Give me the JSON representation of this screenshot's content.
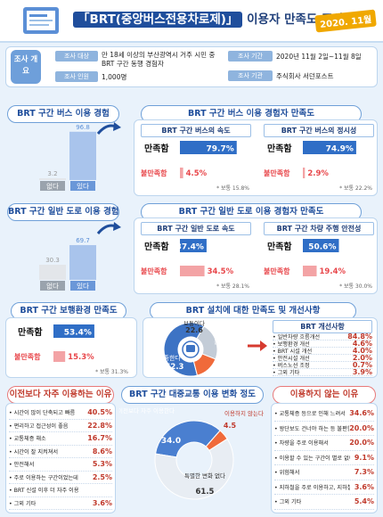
{
  "header": {
    "title_brt": "「BRT(중앙버스전용차로제)」",
    "title_rest": " 이용자 만족도 조사",
    "year": "2020. 11월"
  },
  "overview": {
    "label": "조사 개요",
    "target_label": "조사 대상",
    "target_value": "만 18세 이상의 부산광역시 거주 시민 중 BRT 구간 동행 경험자",
    "count_label": "조사 인원",
    "count_value": "1,000명",
    "period_label": "조사 기간",
    "period_value": "2020년 11월 2일~11월 8일",
    "org_label": "조사 기관",
    "org_value": "주식회사 서던포스트"
  },
  "s1": {
    "title": "BRT 구간 버스 이용 경험",
    "right_title": "BRT 구간 버스 이용 경험자 만족도",
    "left_box": "BRT 구간 버스의 속도",
    "right_box": "BRT 구간 버스의 정시성"
  },
  "s2": {
    "title": "BRT 구간 일반 도로 이용 경험",
    "right_title": "BRT 구간 일반 도로 이용 경험자 만족도",
    "left_box": "BRT 구간 일반 도로 속도",
    "right_box": "BRT 구간 차량 주행 안전성"
  },
  "s3": {
    "title": "BRT 구간 보행환경 만족도",
    "right_title": "BRT 설치에 대한 만족도 및 개선사항",
    "improve_title": "BRT 개선사항"
  },
  "s4": {
    "left_title": "이전보다 자주 이용하는 이유",
    "mid_title": "BRT 구간 대중교통 이용 변화 정도",
    "right_title": "이용하지 않는 이유"
  },
  "labels": {
    "sat": "만족함",
    "unsat": "불만족함",
    "normal_prefix": "* 보통 ",
    "none": "없다",
    "yes": "있다"
  },
  "chart_data": [
    {
      "type": "bar",
      "name": "BRT 구간 버스 이용 경험",
      "categories": [
        "없다",
        "있다"
      ],
      "values": [
        3.2,
        96.8
      ]
    },
    {
      "type": "bar",
      "name": "BRT 구간 버스의 속도",
      "categories": [
        "만족함",
        "불만족함"
      ],
      "values": [
        79.7,
        4.5
      ],
      "normal": 15.8
    },
    {
      "type": "bar",
      "name": "BRT 구간 버스의 정시성",
      "categories": [
        "만족함",
        "불만족함"
      ],
      "values": [
        74.9,
        2.9
      ],
      "normal": 22.2
    },
    {
      "type": "bar",
      "name": "BRT 구간 일반 도로 이용 경험",
      "categories": [
        "없다",
        "있다"
      ],
      "values": [
        30.3,
        69.7
      ]
    },
    {
      "type": "bar",
      "name": "BRT 구간 일반 도로 속도",
      "categories": [
        "만족함",
        "불만족함"
      ],
      "values": [
        37.4,
        34.5
      ],
      "normal": 28.1
    },
    {
      "type": "bar",
      "name": "BRT 구간 차량 주행 안전성",
      "categories": [
        "만족함",
        "불만족함"
      ],
      "values": [
        50.6,
        19.4
      ],
      "normal": 30.0
    },
    {
      "type": "bar",
      "name": "BRT 구간 보행환경 만족도",
      "categories": [
        "만족함",
        "불만족함"
      ],
      "values": [
        53.4,
        15.3
      ],
      "normal": 31.3
    },
    {
      "type": "pie",
      "name": "BRT 설치에 대한 만족도",
      "categories": [
        "만족한다",
        "보통이다",
        "불만족한다"
      ],
      "values": [
        62.3,
        22.6,
        15.1
      ]
    },
    {
      "type": "table",
      "name": "BRT 개선사항",
      "categories": [
        "일반차량 흐름개선",
        "보행환경 개선",
        "BRT 시설 개선",
        "안전시설 개선",
        "버스노선 조정",
        "그외 기타"
      ],
      "values": [
        84.8,
        4.6,
        4.0,
        2.0,
        0.7,
        3.9
      ]
    },
    {
      "type": "table",
      "name": "이전보다 자주 이용하는 이유",
      "categories": [
        "시간이 많이 단축되고 빠름",
        "편리하고 접근성이 좋음",
        "교통체증 해소",
        "시간이 잘 지켜져서",
        "안전해서",
        "주로 이용하는 구간이었는데",
        "BRT 신설 이후 더 자주 이용",
        "그외 기타"
      ],
      "values": [
        40.5,
        22.8,
        16.7,
        8.6,
        5.3,
        2.5,
        null,
        3.6
      ]
    },
    {
      "type": "pie",
      "name": "BRT 구간 대중교통 이용 변화 정도",
      "categories": [
        "이전보다 자주 이용한다",
        "이용하지 않는다",
        "특별한 변화 없다"
      ],
      "values": [
        34.0,
        4.5,
        61.5
      ]
    },
    {
      "type": "table",
      "name": "이용하지 않는 이유",
      "categories": [
        "교통체증 등으로 인해 느려서",
        "왕단보도 건너야 하는 등 불편함",
        "차량을 주로 이용해서",
        "이용할 수 있는 구간이 별로 없어서",
        "위험해서",
        "지하철을 주로 이용하고, 지하철과 중복되어서",
        "그외 기타"
      ],
      "values": [
        34.6,
        20.0,
        20.0,
        9.1,
        7.3,
        3.6,
        5.4
      ]
    }
  ]
}
